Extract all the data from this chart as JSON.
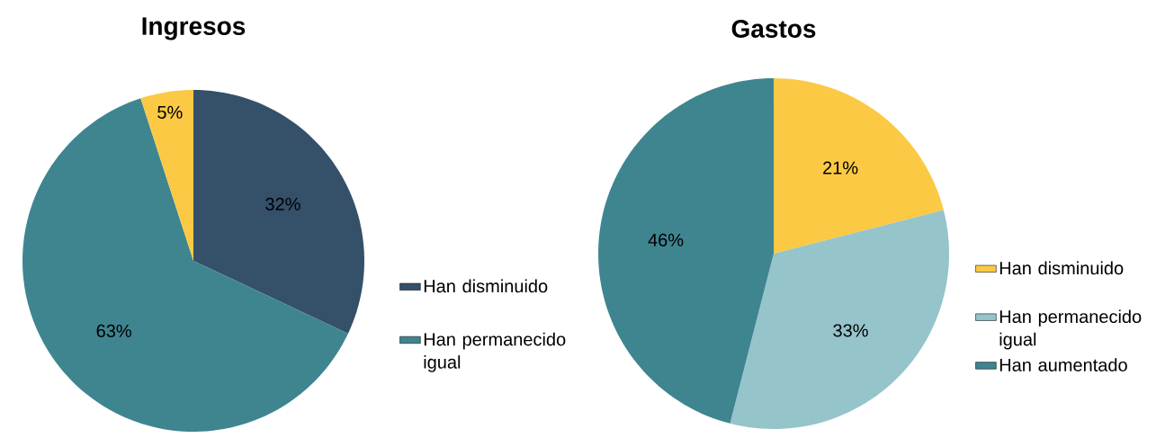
{
  "chart_data": [
    {
      "type": "pie",
      "title": "Ingresos",
      "categories": [
        "Han disminuido",
        "Han permanecido igual",
        null
      ],
      "values": [
        32,
        63,
        5
      ],
      "colors": [
        "#355069",
        "#3e8590",
        "#fbc944"
      ],
      "value_labels": [
        "32%",
        "63%",
        "5%"
      ],
      "legend": "right"
    },
    {
      "type": "pie",
      "title": "Gastos",
      "categories": [
        "Han disminuido",
        "Han permanecido igual",
        "Han aumentado"
      ],
      "values": [
        21,
        33,
        46
      ],
      "colors": [
        "#fbc944",
        "#95c4cb",
        "#3e8590"
      ],
      "value_labels": [
        "21%",
        "33%",
        "46%"
      ],
      "legend": "right"
    }
  ]
}
